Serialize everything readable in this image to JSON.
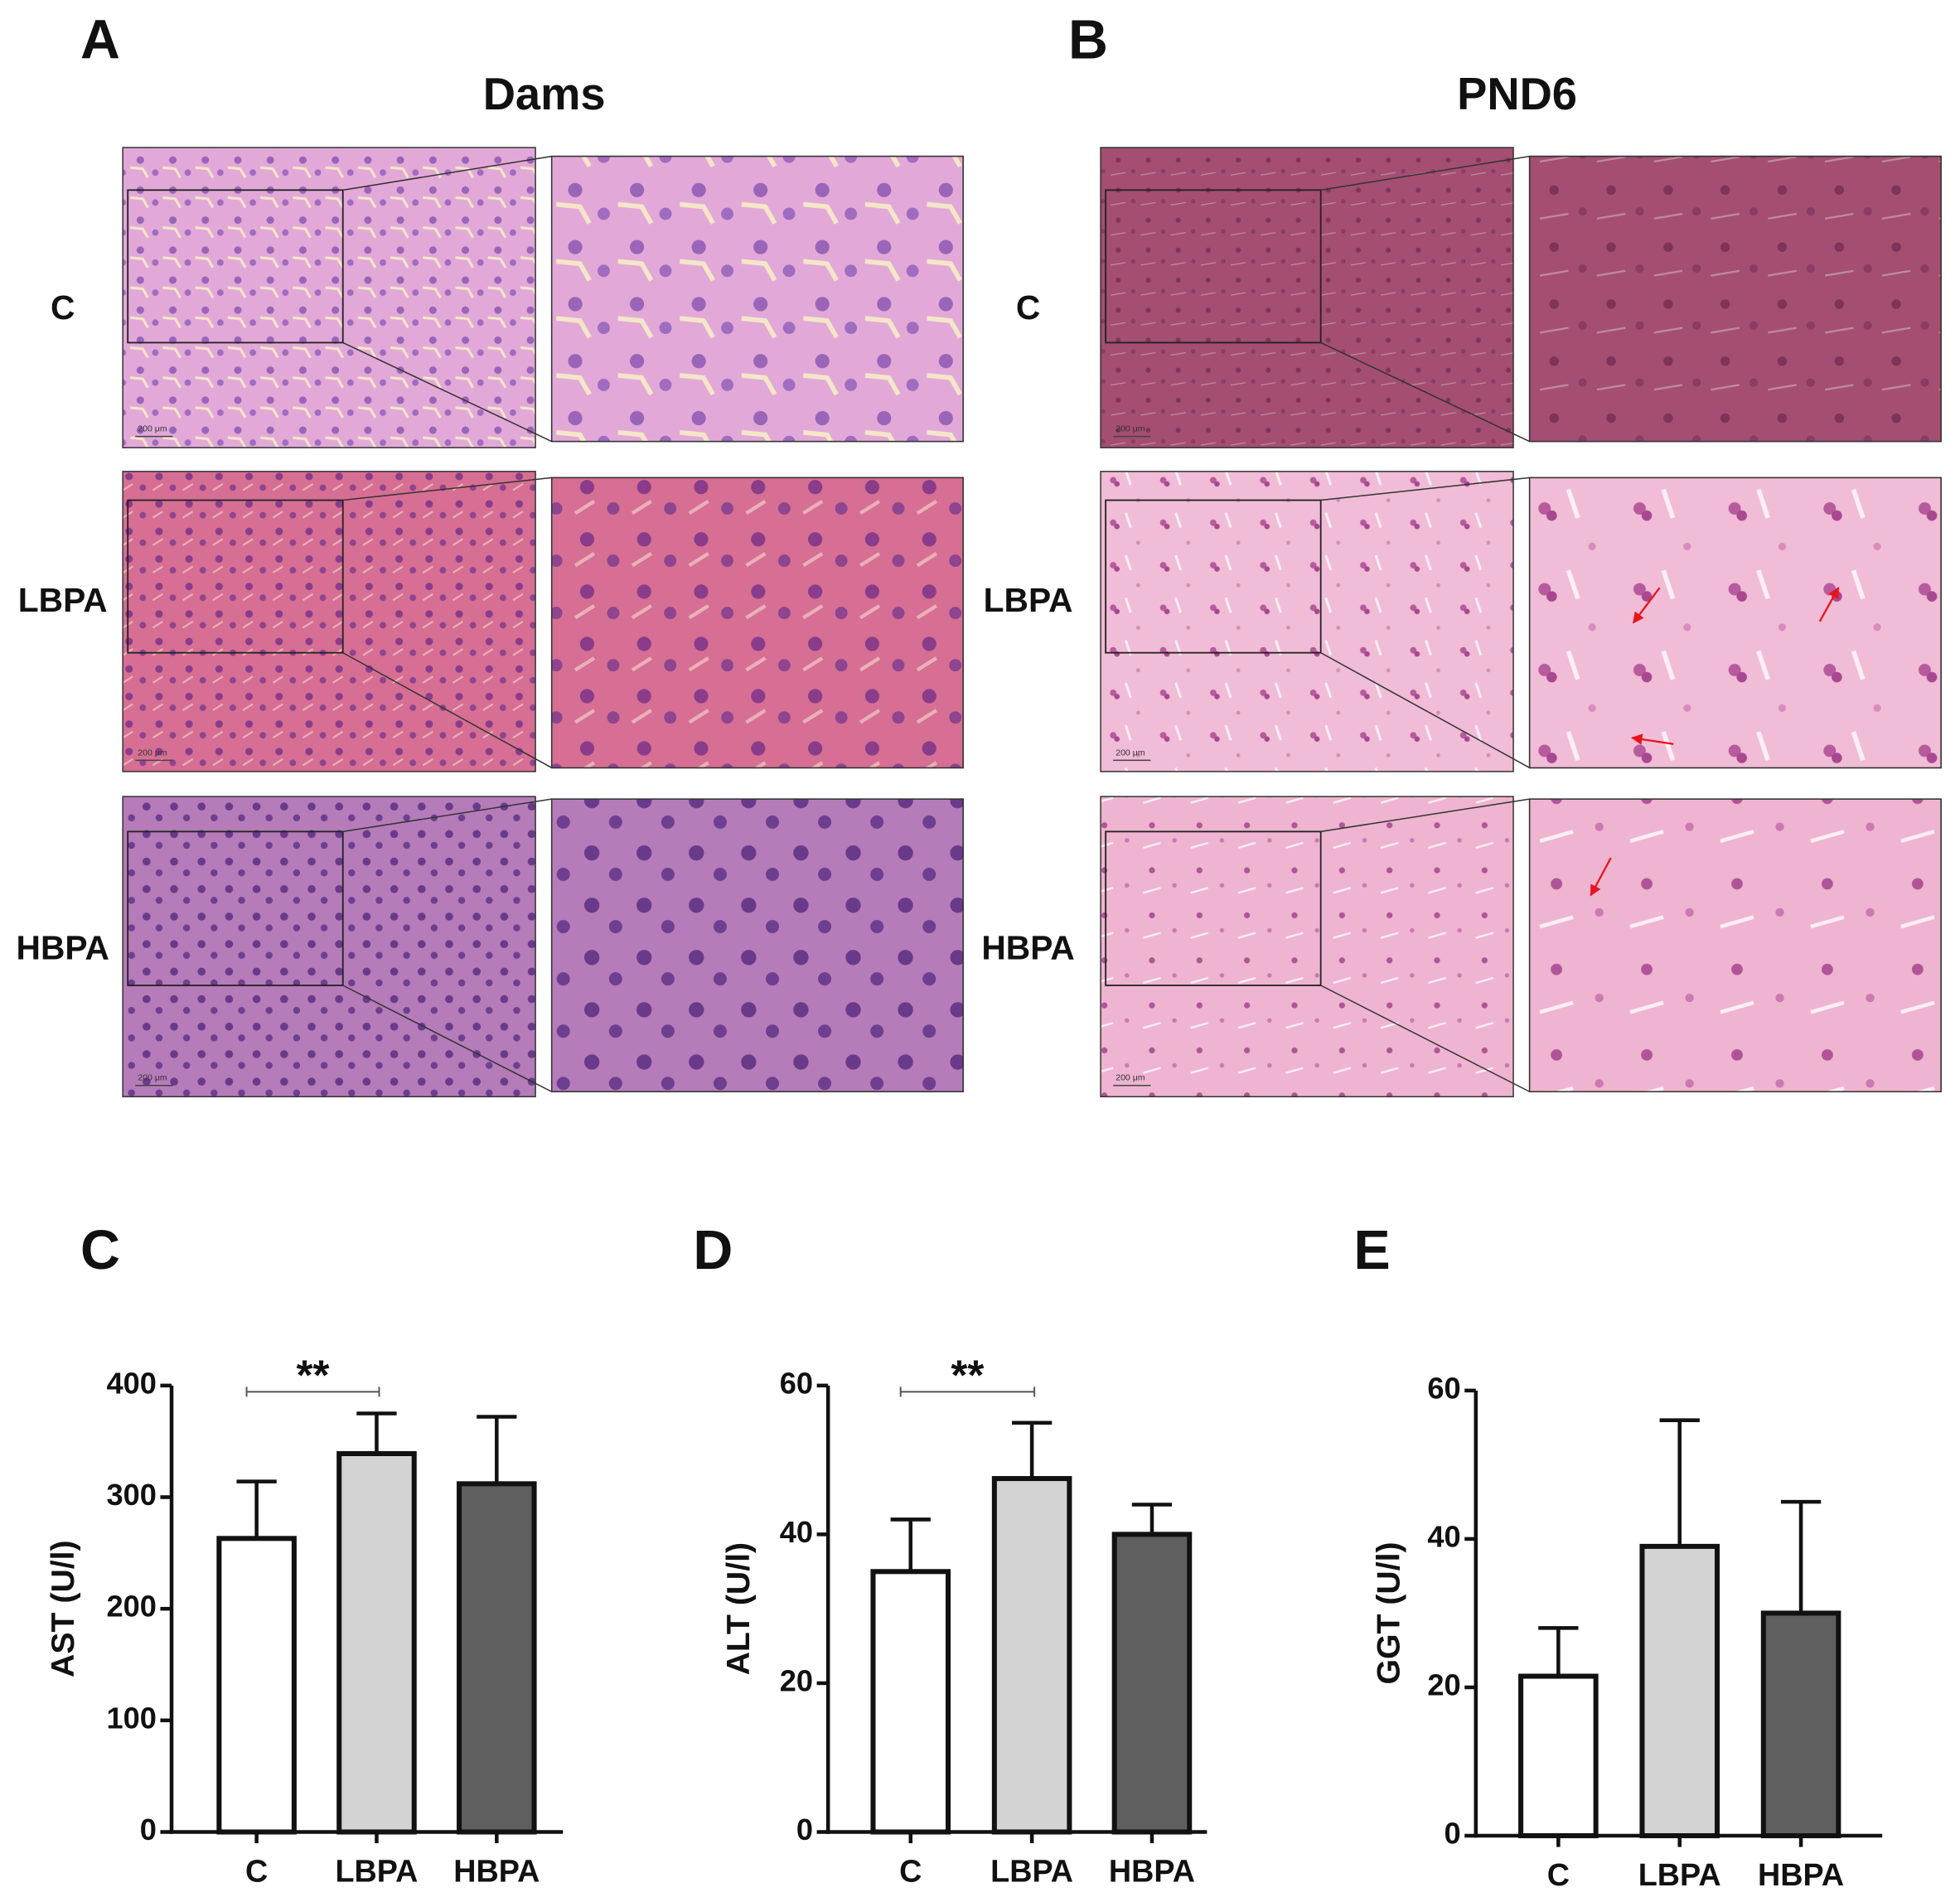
{
  "histology": [
    {
      "panel": "A",
      "title": "Dams",
      "rows": [
        "C",
        "LBPA",
        "HBPA"
      ]
    },
    {
      "panel": "B",
      "title": "PND6",
      "rows": [
        "C",
        "LBPA",
        "HBPA"
      ]
    }
  ],
  "scale_bar": "200 μm",
  "chart_data": [
    {
      "type": "bar",
      "panel": "C",
      "y_label": "AST (U/l)",
      "categories": [
        "C",
        "LBPA",
        "HBPA"
      ],
      "values": [
        263,
        339,
        312
      ],
      "errors": [
        51,
        36,
        60
      ],
      "colors": [
        "#ffffff",
        "#d3d3d3",
        "#5f5f5f"
      ],
      "ylim": [
        0,
        400
      ],
      "yticks": [
        0,
        100,
        200,
        300,
        400
      ],
      "comparisons": [
        {
          "label": "**",
          "groups": [
            0,
            1
          ]
        }
      ]
    },
    {
      "type": "bar",
      "panel": "D",
      "y_label": "ALT (U/l)",
      "categories": [
        "C",
        "LBPA",
        "HBPA"
      ],
      "values": [
        35,
        47.5,
        40
      ],
      "errors": [
        7,
        7.5,
        4
      ],
      "colors": [
        "#ffffff",
        "#d3d3d3",
        "#5f5f5f"
      ],
      "ylim": [
        0,
        60
      ],
      "yticks": [
        0,
        20,
        40,
        60
      ],
      "comparisons": [
        {
          "label": "**",
          "groups": [
            0,
            1
          ]
        }
      ]
    },
    {
      "type": "bar",
      "panel": "E",
      "y_label": "GGT (U/l)",
      "categories": [
        "C",
        "LBPA",
        "HBPA"
      ],
      "values": [
        21.5,
        39,
        30
      ],
      "errors": [
        6.5,
        17,
        15
      ],
      "colors": [
        "#ffffff",
        "#d3d3d3",
        "#5f5f5f"
      ],
      "ylim": [
        0,
        60
      ],
      "yticks": [
        0,
        20,
        40,
        60
      ],
      "comparisons": []
    }
  ]
}
